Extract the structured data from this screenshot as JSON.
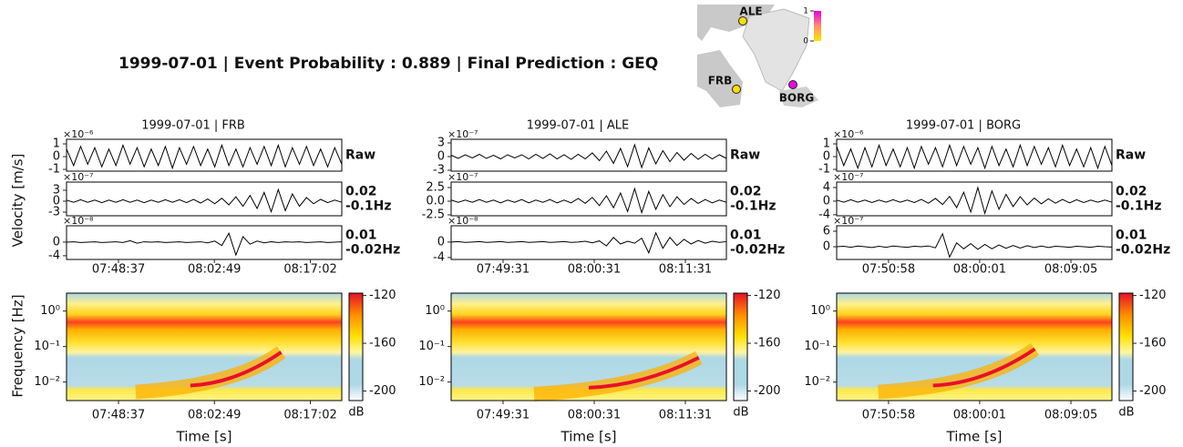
{
  "title": "1999-07-01 | Event Probability : 0.889 | Final Prediction : GEQ",
  "velocity_label": "Velocity [m/s]",
  "frequency_label": "Frequency [Hz]",
  "map": {
    "clim": [
      0,
      1
    ],
    "cticks": [
      0,
      1
    ],
    "stations": [
      {
        "name": "ALE",
        "value": 0.05
      },
      {
        "name": "FRB",
        "value": 0.05
      },
      {
        "name": "BORG",
        "value": 0.95
      }
    ]
  },
  "chart_data": [
    {
      "type": "waveform-spectrogram",
      "title": "1999-07-01 | FRB",
      "xlabel": "Time [s]",
      "xlim": [
        27655,
        30101
      ],
      "xticks": [
        {
          "value": 28117,
          "label": "07:48:37"
        },
        {
          "value": 28969,
          "label": "08:02:49"
        },
        {
          "value": 29822,
          "label": "08:17:02"
        }
      ],
      "traces": [
        {
          "label": [
            "Raw"
          ],
          "exponent": "×10⁻⁶",
          "ylim": [
            -1.14,
            1.36
          ],
          "yticks": [
            1,
            0,
            -1
          ],
          "values": [
            0.6,
            -0.7,
            0.8,
            -0.6,
            0.7,
            -0.8,
            0.6,
            -0.7,
            0.9,
            -0.6,
            0.7,
            -0.8,
            0.6,
            -0.7,
            0.8,
            -0.9,
            0.7,
            -0.6,
            0.8,
            -0.7,
            0.6,
            -0.8,
            0.9,
            -0.7,
            0.6,
            -0.8,
            0.7,
            -0.6,
            0.8,
            -0.7,
            0.9,
            -0.8,
            0.7,
            -0.6,
            0.8,
            -0.7,
            0.6,
            -0.8,
            0.7,
            -0.6
          ]
        },
        {
          "label": [
            "0.02",
            "-0.1Hz"
          ],
          "exponent": "×10⁻⁷",
          "ylim": [
            -4,
            5.25
          ],
          "yticks": [
            3,
            0,
            -3
          ],
          "values": [
            0.3,
            -0.3,
            0.4,
            -0.3,
            0.3,
            -0.4,
            0.3,
            -0.3,
            0.4,
            -0.3,
            0.3,
            -0.4,
            0.3,
            -0.3,
            0.4,
            -0.3,
            0.4,
            -0.4,
            0.5,
            -0.5,
            0.6,
            -0.7,
            0.8,
            -1.0,
            1.2,
            -1.4,
            1.6,
            -2.0,
            2.4,
            -2.9,
            3.2,
            -2.6,
            2.0,
            -1.4,
            1.0,
            -0.7,
            0.5,
            -0.4,
            0.3,
            -0.3
          ]
        },
        {
          "label": [
            "0.01",
            "-0.02Hz"
          ],
          "exponent": "×10⁻⁸",
          "ylim": [
            -5.1,
            4.8
          ],
          "yticks": [
            0,
            -4
          ],
          "values": [
            0,
            0.1,
            -0.1,
            0,
            0.1,
            -0.1,
            0,
            0.1,
            -0.1,
            0.4,
            -0.3,
            0.1,
            0,
            0.1,
            -0.1,
            0,
            0.1,
            -0.1,
            0,
            0.1,
            -0.2,
            0.3,
            -1.0,
            2.6,
            -3.8,
            1.6,
            -0.6,
            0.3,
            -0.2,
            0.1,
            -0.1,
            0.1,
            0,
            0.1,
            -0.1,
            0,
            0.1,
            -0.1,
            0,
            0.1
          ]
        }
      ],
      "spectrogram": {
        "log_y": true,
        "ylim": [
          0.003,
          3.2
        ],
        "yticks": [
          {
            "value": 1,
            "label": "10⁰"
          },
          {
            "value": 0.1,
            "label": "10⁻¹"
          },
          {
            "value": 0.01,
            "label": "10⁻²"
          }
        ],
        "clim": [
          -208,
          -118
        ],
        "cticks": [
          -120,
          -160,
          -200
        ],
        "clabel": "dB"
      }
    },
    {
      "type": "waveform-spectrogram",
      "title": "1999-07-01 | ALE",
      "xlabel": "Time [s]",
      "xlim": [
        27795,
        29788
      ],
      "xticks": [
        {
          "value": 28171,
          "label": "07:49:31"
        },
        {
          "value": 28831,
          "label": "08:00:31"
        },
        {
          "value": 29491,
          "label": "08:11:31"
        }
      ],
      "traces": [
        {
          "label": [
            "Raw"
          ],
          "exponent": "×10⁻⁷",
          "ylim": [
            -3.2,
            3.8
          ],
          "yticks": [
            3,
            0,
            -3
          ],
          "values": [
            0.3,
            -0.4,
            0.4,
            -0.3,
            0.5,
            -0.4,
            0.3,
            -0.5,
            0.4,
            -0.3,
            0.4,
            -0.5,
            0.5,
            -0.4,
            0.6,
            -0.5,
            0.4,
            -0.6,
            0.5,
            -0.5,
            0.8,
            -0.9,
            1.2,
            -1.5,
            1.8,
            -2.2,
            2.6,
            -2.4,
            1.9,
            -1.6,
            1.3,
            -1.1,
            0.9,
            -0.8,
            0.7,
            -0.6,
            0.5,
            -0.5,
            0.4,
            -0.4
          ]
        },
        {
          "label": [
            "0.02",
            "-0.1Hz"
          ],
          "exponent": "×10⁻⁷",
          "ylim": [
            -2.67,
            3.5
          ],
          "yticks": [
            {
              "value": 2.5,
              "label": "2.5"
            },
            {
              "value": 0,
              "label": "0.0"
            },
            {
              "value": -2.5,
              "label": "-2.5"
            }
          ],
          "values": [
            0.2,
            -0.2,
            0.2,
            -0.2,
            0.3,
            -0.2,
            0.2,
            -0.3,
            0.2,
            -0.2,
            0.3,
            -0.3,
            0.2,
            -0.2,
            0.3,
            -0.3,
            0.2,
            -0.3,
            0.5,
            -0.4,
            0.7,
            -0.8,
            1.0,
            -1.2,
            1.5,
            -1.9,
            2.3,
            -2.1,
            1.8,
            -1.5,
            1.2,
            -1.0,
            0.8,
            -0.6,
            0.5,
            -0.4,
            0.3,
            -0.3,
            0.2,
            -0.2
          ]
        },
        {
          "label": [
            "0.01",
            "-0.02Hz"
          ],
          "exponent": "×10⁻⁸",
          "ylim": [
            -4.5,
            4.2
          ],
          "yticks": [
            0,
            -4
          ],
          "values": [
            0,
            0.1,
            -0.1,
            0,
            0.1,
            -0.1,
            0,
            0.1,
            -0.1,
            0,
            0.1,
            -0.1,
            0,
            0.1,
            -0.1,
            0,
            0.1,
            -0.1,
            0,
            0.2,
            -0.2,
            0.3,
            -1.0,
            1.2,
            -0.5,
            0.2,
            -0.3,
            1.0,
            -2.8,
            2.4,
            -1.6,
            1.2,
            -0.9,
            0.7,
            -0.5,
            0.4,
            -0.3,
            0.2,
            -0.1,
            0.1
          ]
        }
      ],
      "spectrogram": {
        "log_y": true,
        "ylim": [
          0.003,
          3.2
        ],
        "yticks": [
          {
            "value": 1,
            "label": "10⁰"
          },
          {
            "value": 0.1,
            "label": "10⁻¹"
          },
          {
            "value": 0.01,
            "label": "10⁻²"
          }
        ],
        "clim": [
          -208,
          -118
        ],
        "cticks": [
          -120,
          -160,
          -200
        ],
        "clabel": "dB"
      }
    },
    {
      "type": "waveform-spectrogram",
      "title": "1999-07-01 | BORG",
      "xlabel": "Time [s]",
      "xlim": [
        27949,
        29589
      ],
      "xticks": [
        {
          "value": 28258,
          "label": "07:50:58"
        },
        {
          "value": 28801,
          "label": "08:00:01"
        },
        {
          "value": 29345,
          "label": "08:09:05"
        }
      ],
      "traces": [
        {
          "label": [
            "Raw"
          ],
          "exponent": "×10⁻⁶",
          "ylim": [
            -1.14,
            1.36
          ],
          "yticks": [
            1,
            0,
            -1
          ],
          "values": [
            0.8,
            -0.7,
            0.6,
            -0.9,
            0.7,
            -0.8,
            0.9,
            -0.7,
            0.6,
            -0.8,
            0.7,
            -0.9,
            0.8,
            -0.6,
            0.7,
            -0.8,
            0.9,
            -0.7,
            0.8,
            -0.6,
            0.7,
            -0.9,
            0.8,
            -0.7,
            0.6,
            -0.8,
            0.9,
            -0.7,
            0.8,
            -0.6,
            0.7,
            -0.8,
            0.9,
            -0.7,
            0.6,
            -0.8,
            0.7,
            -0.9,
            0.8,
            -0.7
          ]
        },
        {
          "label": [
            "0.02",
            "-0.1Hz"
          ],
          "exponent": "×10⁻⁷",
          "ylim": [
            -4.3,
            5.6
          ],
          "yticks": [
            4,
            0,
            -4
          ],
          "values": [
            0.3,
            -0.3,
            0.4,
            -0.3,
            0.3,
            -0.4,
            0.3,
            -0.3,
            0.4,
            -0.3,
            0.3,
            -0.4,
            0.5,
            -0.6,
            0.8,
            -1.0,
            1.4,
            -1.9,
            2.6,
            -3.2,
            4.0,
            -3.6,
            3.0,
            -2.4,
            2.0,
            -1.6,
            1.3,
            -1.1,
            0.9,
            -0.8,
            0.7,
            -0.6,
            0.5,
            -0.5,
            0.4,
            -0.4,
            0.3,
            -0.3,
            0.3,
            -0.3
          ]
        },
        {
          "label": [
            "0.01",
            "-0.02Hz"
          ],
          "exponent": "×10⁻⁷",
          "ylim": [
            -4.9,
            8.1
          ],
          "yticks": [
            6,
            0
          ],
          "values": [
            0,
            0.2,
            -0.2,
            0.3,
            0,
            -0.3,
            0.2,
            -0.2,
            0.3,
            0,
            -0.2,
            0.2,
            0,
            0.3,
            -0.4,
            5.0,
            -4.0,
            1.5,
            -0.8,
            1.2,
            -1.0,
            0.9,
            -0.8,
            0.7,
            -0.6,
            0.5,
            -0.5,
            0.4,
            -0.3,
            0.3,
            -0.3,
            0.2,
            0,
            -0.2,
            0.2,
            0,
            -0.2,
            0.2,
            0,
            -0.1
          ]
        }
      ],
      "spectrogram": {
        "log_y": true,
        "ylim": [
          0.003,
          3.2
        ],
        "yticks": [
          {
            "value": 1,
            "label": "10⁰"
          },
          {
            "value": 0.1,
            "label": "10⁻¹"
          },
          {
            "value": 0.01,
            "label": "10⁻²"
          }
        ],
        "clim": [
          -208,
          -118
        ],
        "cticks": [
          -120,
          -160,
          -200
        ],
        "clabel": "dB"
      }
    }
  ]
}
